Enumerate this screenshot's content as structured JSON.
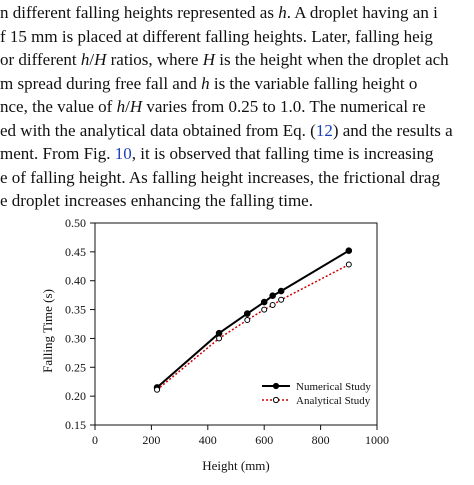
{
  "paragraph": {
    "lines": [
      [
        {
          "t": "n different falling heights represented as "
        },
        {
          "t": "h",
          "m": 1
        },
        {
          "t": ". A droplet having an i"
        }
      ],
      [
        {
          "t": "f 15 mm is placed at different falling heights. Later, falling heig"
        }
      ],
      [
        {
          "t": "or different "
        },
        {
          "t": "h",
          "m": 1
        },
        {
          "t": "/"
        },
        {
          "t": "H",
          "m": 1
        },
        {
          "t": " ratios, where "
        },
        {
          "t": "H",
          "m": 1
        },
        {
          "t": " is the height when the droplet ach"
        }
      ],
      [
        {
          "t": "m spread during free fall and "
        },
        {
          "t": "h",
          "m": 1
        },
        {
          "t": " is the variable falling height o"
        }
      ],
      [
        {
          "t": "nce, the value of "
        },
        {
          "t": "h",
          "m": 1
        },
        {
          "t": "/"
        },
        {
          "t": "H",
          "m": 1
        },
        {
          "t": " varies from 0.25 to 1.0. The numerical re"
        }
      ],
      [
        {
          "t": "ed with the analytical data obtained from Eq. ("
        },
        {
          "t": "12",
          "r": 1
        },
        {
          "t": ") and the results a"
        }
      ],
      [
        {
          "t": "ment. From Fig. "
        },
        {
          "t": "10",
          "r": 1
        },
        {
          "t": ", it is observed that falling time is increasing"
        }
      ],
      [
        {
          "t": "e of falling height. As falling height increases, the frictional drag"
        }
      ],
      [
        {
          "t": "e droplet increases enhancing the falling time."
        }
      ]
    ]
  },
  "chart_data": {
    "type": "line",
    "title": "",
    "xlabel": "Height (mm)",
    "ylabel": "Falling Time (s)",
    "xlim": [
      0,
      1000
    ],
    "ylim": [
      0.15,
      0.5
    ],
    "xticks": [
      "0",
      "200",
      "400",
      "600",
      "800",
      "1000"
    ],
    "yticks": [
      "0.15",
      "0.20",
      "0.25",
      "0.30",
      "0.35",
      "0.40",
      "0.45",
      "0.50"
    ],
    "grid": false,
    "legend_position": "bottom-right",
    "series": [
      {
        "name": "Numerical Study",
        "color": "#000000",
        "line": "solid",
        "marker": "filled-circle",
        "x": [
          220,
          440,
          540,
          600,
          630,
          660,
          900
        ],
        "y": [
          0.215,
          0.309,
          0.343,
          0.363,
          0.374,
          0.382,
          0.452
        ]
      },
      {
        "name": "Analytical Study",
        "color": "#cc0000",
        "line": "dotted",
        "marker": "open-circle",
        "x": [
          220,
          440,
          540,
          600,
          630,
          660,
          900
        ],
        "y": [
          0.211,
          0.3,
          0.332,
          0.35,
          0.358,
          0.367,
          0.428
        ]
      }
    ]
  }
}
